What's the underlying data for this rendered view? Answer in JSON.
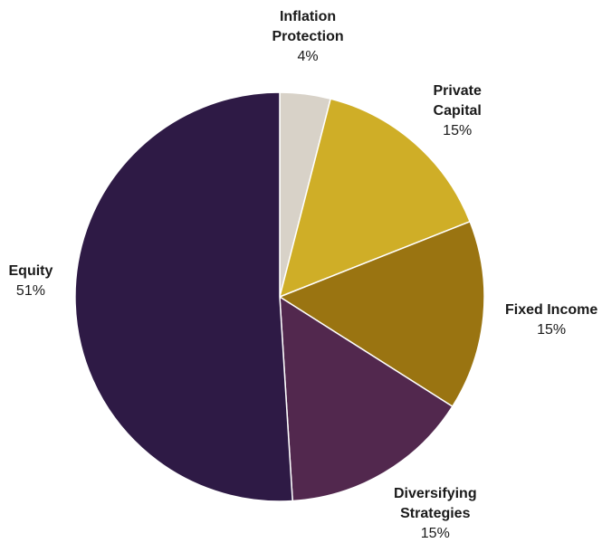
{
  "chart_data": {
    "type": "pie",
    "start_angle_deg": 0,
    "direction": "clockwise",
    "slices": [
      {
        "name": "Inflation Protection",
        "label_lines": [
          "Inflation",
          "Protection"
        ],
        "value": 4,
        "value_label": "4%",
        "color": "#D8D2C8"
      },
      {
        "name": "Private Capital",
        "label_lines": [
          "Private",
          "Capital"
        ],
        "value": 15,
        "value_label": "15%",
        "color": "#CFAE27"
      },
      {
        "name": "Fixed Income",
        "label_lines": [
          "Fixed Income"
        ],
        "value": 15,
        "value_label": "15%",
        "color": "#9A7411"
      },
      {
        "name": "Diversifying Strategies",
        "label_lines": [
          "Diversifying",
          "Strategies"
        ],
        "value": 15,
        "value_label": "15%",
        "color": "#52284E"
      },
      {
        "name": "Equity",
        "label_lines": [
          "Equity"
        ],
        "value": 51,
        "value_label": "51%",
        "color": "#2E1A45"
      }
    ]
  }
}
